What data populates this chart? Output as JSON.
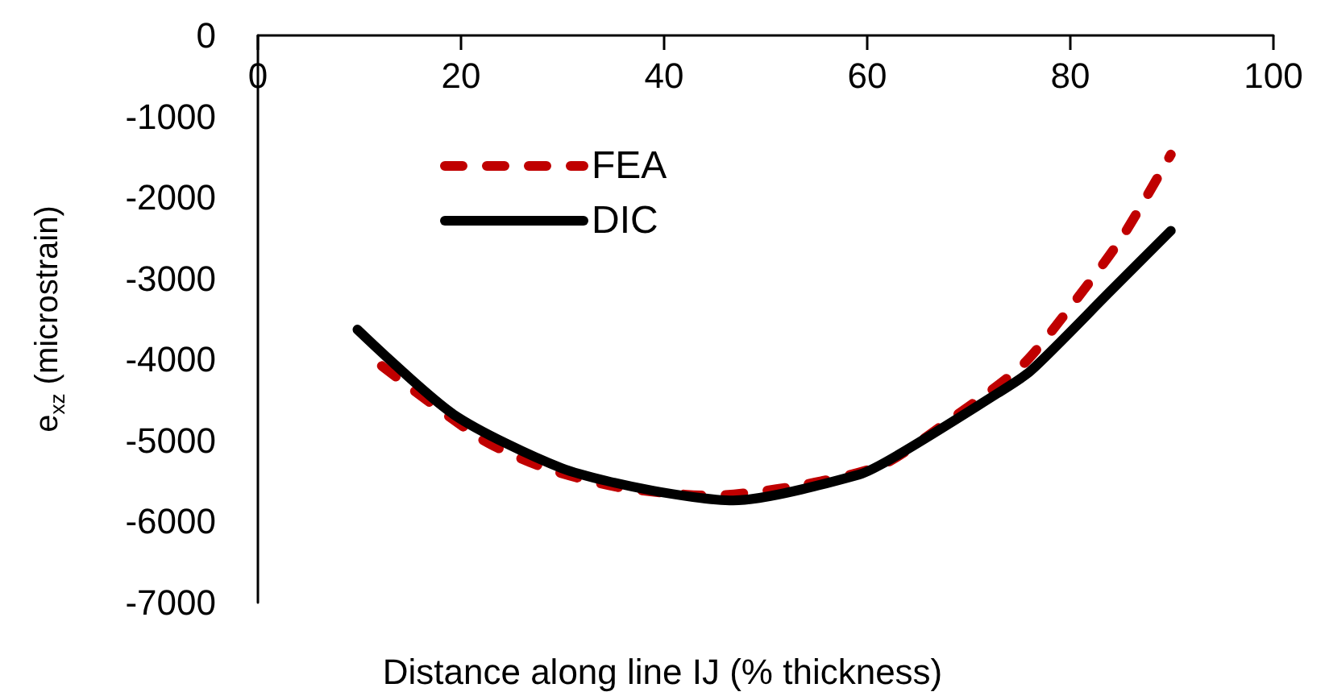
{
  "chart_data": {
    "type": "line",
    "xlabel": "Distance along line IJ (% thickness)",
    "ylabel": "e$_{xz}$ (microstrain)",
    "xlim": [
      0,
      100
    ],
    "xticks": [
      0,
      20,
      40,
      60,
      80,
      100
    ],
    "ylim": [
      -7000,
      0
    ],
    "yticks": [
      -7000,
      -6000,
      -5000,
      -4000,
      -3000,
      -2000,
      -1000,
      0
    ],
    "grid": false,
    "legend": "top left",
    "marker": "none",
    "series": [
      {
        "name": "FEA",
        "color": "#c00000",
        "line_style": "dashed",
        "x": [
          12.2,
          22.0,
          28.3,
          35.7,
          44.5,
          53.1,
          61.5,
          68.2,
          75.2,
          80.4,
          85.1,
          89.9
        ],
        "values": [
          -4080,
          -4980,
          -5340,
          -5580,
          -5680,
          -5560,
          -5300,
          -4740,
          -4080,
          -3290,
          -2490,
          -1470
        ]
      },
      {
        "name": "DIC",
        "color": "#000000",
        "line_style": "solid",
        "x": [
          9.8,
          19.3,
          29.9,
          38.9,
          46.8,
          59.2,
          63.0,
          72.8,
          76.1,
          84.0,
          89.9
        ],
        "values": [
          -3630,
          -4680,
          -5340,
          -5620,
          -5740,
          -5420,
          -5180,
          -4420,
          -4140,
          -3150,
          -2410
        ]
      }
    ]
  }
}
